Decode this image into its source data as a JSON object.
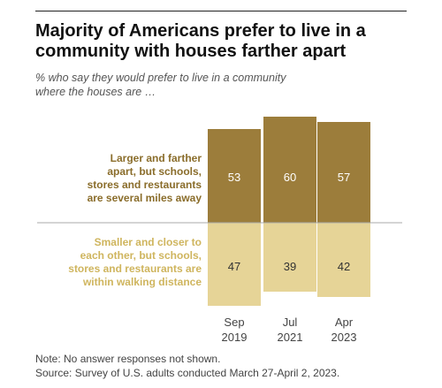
{
  "header": {
    "title_line1": "Majority of Americans prefer to live in a",
    "title_line2": "community with houses farther apart",
    "subtitle_line1": "% who say they would prefer to live in a community",
    "subtitle_line2": "where the houses are …"
  },
  "chart_data": {
    "type": "bar",
    "stacked_diverging": true,
    "categories": [
      {
        "month": "Sep",
        "year": "2019"
      },
      {
        "month": "Jul",
        "year": "2021"
      },
      {
        "month": "Apr",
        "year": "2023"
      }
    ],
    "series": [
      {
        "name_lines": [
          "Larger and farther",
          "apart, but schools,",
          "stores and restaurants",
          "are several miles away"
        ],
        "values": [
          53,
          60,
          57
        ],
        "color": "#9c7d3b"
      },
      {
        "name_lines": [
          "Smaller and closer to",
          "each other, but schools,",
          "stores and restaurants are",
          "within walking distance"
        ],
        "values": [
          47,
          39,
          42
        ],
        "color": "#e6d497"
      }
    ],
    "label_colors": {
      "top": "#8a6d2b",
      "bottom": "#cfb55e"
    }
  },
  "footer": {
    "note": "Note: No answer responses not shown.",
    "source": "Source: Survey of U.S. adults conducted March 27-April 2, 2023."
  }
}
